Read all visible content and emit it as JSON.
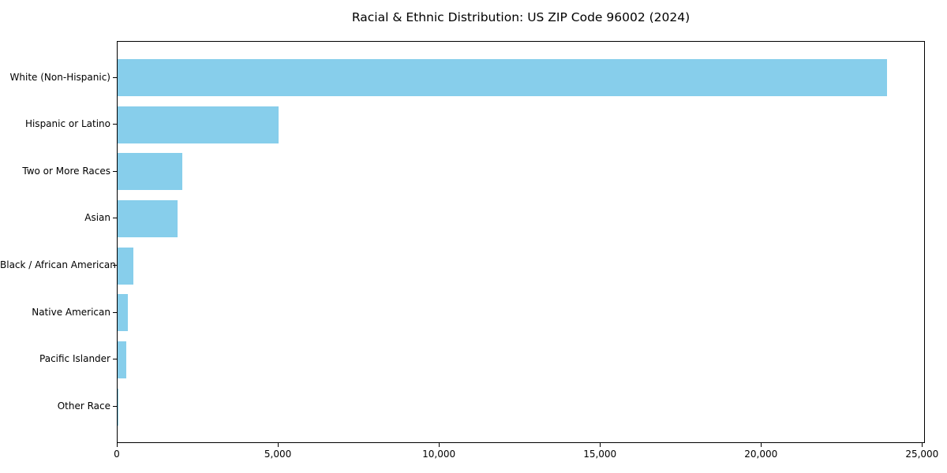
{
  "chart_data": {
    "type": "bar",
    "orientation": "horizontal",
    "title": "Racial & Ethnic Distribution: US ZIP Code 96002 (2024)",
    "categories": [
      "White (Non-Hispanic)",
      "Hispanic or Latino",
      "Two or More Races",
      "Asian",
      "Black / African American",
      "Native American",
      "Pacific Islander",
      "Other Race"
    ],
    "values": [
      23900,
      5000,
      2000,
      1870,
      490,
      320,
      260,
      30
    ],
    "xlabel": "",
    "ylabel": "",
    "xlim": [
      0,
      25090
    ],
    "xticks": [
      {
        "value": 0,
        "label": "0"
      },
      {
        "value": 5000,
        "label": "5,000"
      },
      {
        "value": 10000,
        "label": "10,000"
      },
      {
        "value": 15000,
        "label": "15,000"
      },
      {
        "value": 20000,
        "label": "20,000"
      },
      {
        "value": 25000,
        "label": "25,000"
      }
    ],
    "grid": false,
    "legend": false,
    "bar_color": "#87CEEB",
    "background_color": "#FFFFFF",
    "spine_color": "#000000",
    "text_color": "#000000"
  }
}
